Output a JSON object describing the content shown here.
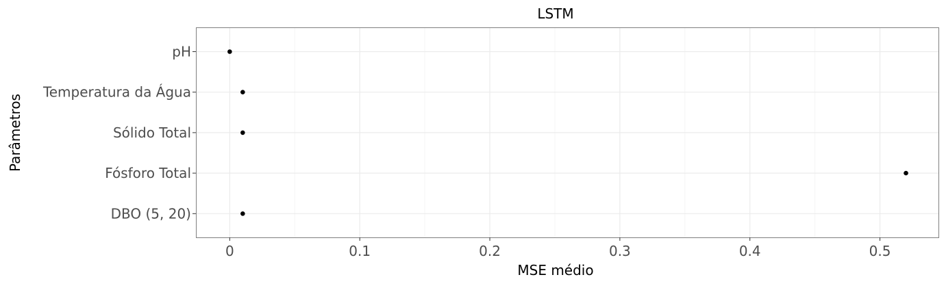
{
  "chart_data": {
    "type": "scatter",
    "title": "LSTM",
    "xlabel": "MSE médio",
    "ylabel": "Parâmetros",
    "categories": [
      "pH",
      "Temperatura da Água",
      "Sólido Total",
      "Fósforo Total",
      "DBO (5, 20)"
    ],
    "values": [
      0.0,
      0.01,
      0.01,
      0.52,
      0.01
    ],
    "xlim": [
      -0.026,
      0.545
    ],
    "xticks": [
      0,
      0.1,
      0.2,
      0.3,
      0.4,
      0.5
    ],
    "xtick_labels": [
      "0",
      "0.1",
      "0.2",
      "0.3",
      "0.4",
      "0.5"
    ],
    "grid": true,
    "theme": "bw",
    "colors": {
      "points": "#000000",
      "grid_major": "#ebebeb",
      "grid_minor": "#f5f5f5",
      "panel_border": "#7f7f7f",
      "tick_text": "#4d4d4d"
    }
  }
}
